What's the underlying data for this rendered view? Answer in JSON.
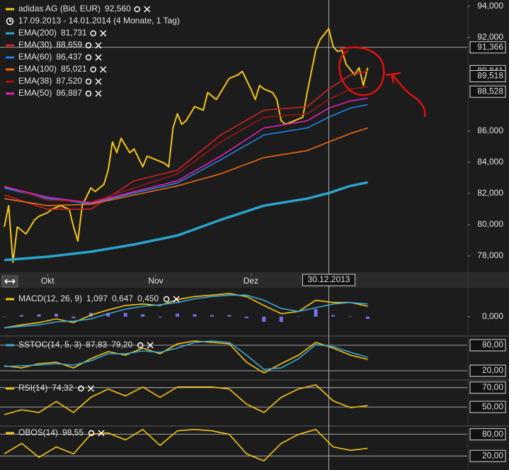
{
  "chart_data": [
    {
      "type": "line",
      "subtitle": "17.09.2013 - 14.01.2014 (4 Monate, 1 Tag)",
      "xlim": [
        -1,
        107
      ],
      "xticks": [
        {
          "value": 10,
          "label": "Okt"
        },
        {
          "value": 35,
          "label": "Nov"
        },
        {
          "value": 57,
          "label": "Dez"
        }
      ],
      "cursor": {
        "value": 75,
        "label": "30.12.2013"
      },
      "ylim": [
        77.5,
        94.4
      ],
      "yticks": [
        {
          "value": 78,
          "label": "78,000"
        },
        {
          "value": 80,
          "label": "80,000"
        },
        {
          "value": 82,
          "label": "82,000"
        },
        {
          "value": 84,
          "label": "84,000"
        },
        {
          "value": 86,
          "label": "86,000"
        },
        {
          "value": 92,
          "label": "92,000"
        },
        {
          "value": 94,
          "label": "94,000"
        }
      ],
      "grid": false,
      "price_lines": [
        {
          "value": 91.366,
          "label": "91,366"
        }
      ],
      "price_tags": [
        {
          "value": 89.841,
          "label": "89,841"
        },
        {
          "value": 89.518,
          "label": "89,518"
        },
        {
          "value": 88.528,
          "label": "88,528"
        }
      ],
      "x": [
        0,
        1,
        2,
        3,
        5,
        7,
        8,
        10,
        11,
        13,
        15,
        16,
        17,
        18,
        20,
        21,
        23,
        24,
        25,
        26,
        27,
        29,
        30,
        32,
        33,
        35,
        37,
        38,
        39,
        40,
        41,
        42,
        44,
        46,
        47,
        49,
        51,
        52,
        54,
        55,
        57,
        58,
        59,
        60,
        62,
        63,
        64,
        65,
        67,
        69,
        70,
        71,
        72,
        73,
        75,
        76,
        77,
        78,
        79,
        81,
        82,
        83,
        84
      ],
      "series": [
        {
          "name": "adidas AG (Bid, EUR)",
          "legend_value": "92,560",
          "color": "#f5c518",
          "values": [
            79.86,
            81.22,
            77.59,
            79.86,
            79.41,
            80.31,
            80.54,
            80.77,
            80.99,
            81.22,
            80.99,
            79.86,
            78.95,
            81.22,
            82.35,
            82.13,
            82.58,
            83.49,
            85.3,
            84.62,
            85.53,
            84.62,
            84.85,
            83.71,
            84.39,
            84.17,
            83.94,
            83.71,
            86.2,
            87.11,
            86.43,
            86.66,
            87.57,
            87.34,
            88.47,
            88.02,
            88.93,
            89.38,
            89.6,
            89.83,
            88.7,
            88.02,
            88.93,
            88.7,
            88.47,
            88.02,
            86.66,
            86.43,
            86.66,
            86.89,
            88.47,
            89.83,
            91.19,
            91.87,
            92.56,
            91.42,
            91.1,
            91.19,
            90.28,
            89.6,
            90.06,
            88.93,
            90.06
          ]
        },
        {
          "name": "EMA(200)",
          "legend_value": "81,731",
          "color": "#2aa3cc",
          "x": [
            0,
            10,
            20,
            30,
            40,
            50,
            60,
            70,
            75,
            80,
            84
          ],
          "values": [
            77.73,
            77.95,
            78.27,
            78.73,
            79.31,
            80.31,
            81.22,
            81.67,
            82.03,
            82.49,
            82.71
          ]
        },
        {
          "name": "EMA(30)",
          "legend_value": "88,659",
          "color": "#d42020",
          "x": [
            0,
            10,
            20,
            30,
            40,
            50,
            60,
            70,
            75,
            80,
            84
          ],
          "values": [
            81.9,
            80.99,
            80.99,
            82.81,
            83.49,
            85.75,
            87.34,
            87.56,
            88.7,
            89.6,
            89.83
          ]
        },
        {
          "name": "EMA(60)",
          "legend_value": "86,437",
          "color": "#1e84e6",
          "x": [
            0,
            10,
            20,
            30,
            40,
            50,
            60,
            70,
            75,
            80,
            84
          ],
          "values": [
            82.35,
            81.67,
            81.35,
            82.03,
            82.67,
            84.16,
            85.75,
            86.2,
            86.89,
            87.47,
            87.7
          ]
        },
        {
          "name": "EMA(100)",
          "legend_value": "85,021",
          "color": "#ec6a12",
          "x": [
            0,
            10,
            20,
            30,
            40,
            50,
            60,
            70,
            75,
            80,
            84
          ],
          "values": [
            81.67,
            81.22,
            81.31,
            81.9,
            82.49,
            83.26,
            84.3,
            84.75,
            85.3,
            85.84,
            86.2
          ]
        },
        {
          "name": "EMA(38)",
          "legend_value": "87,520",
          "color": "#9c1414",
          "x": [
            0,
            10,
            20,
            30,
            40,
            50,
            60,
            70,
            75,
            80,
            84
          ],
          "values": [
            82.49,
            81.58,
            81.45,
            82.35,
            83.26,
            85.3,
            86.89,
            87.11,
            88.02,
            88.7,
            88.83
          ]
        },
        {
          "name": "EMA(50)",
          "legend_value": "86,887",
          "color": "#e020b4",
          "x": [
            0,
            10,
            20,
            30,
            40,
            50,
            60,
            70,
            75,
            80,
            84
          ],
          "values": [
            82.44,
            81.76,
            81.4,
            82.12,
            82.81,
            84.39,
            86.2,
            86.66,
            87.47,
            87.93,
            88.11
          ]
        }
      ]
    },
    {
      "type": "line",
      "title": "MACD(12, 26, 9)",
      "xlim": [
        -1,
        107
      ],
      "ylim": [
        -1.6,
        2.9
      ],
      "yticks": [
        {
          "value": 0,
          "label": "0,000"
        }
      ],
      "grid": false,
      "x": [
        0,
        4,
        8,
        12,
        16,
        20,
        24,
        28,
        32,
        36,
        40,
        44,
        48,
        52,
        56,
        60,
        64,
        68,
        72,
        76,
        80,
        84
      ],
      "series": [
        {
          "type": "bar",
          "legend_value": "0,450",
          "color": "#7b6ff0",
          "values": [
            0.0,
            0.15,
            0.24,
            0.31,
            -0.16,
            0.4,
            0.4,
            0.39,
            0.24,
            -0.08,
            0.31,
            0.24,
            0.15,
            0.16,
            -0.15,
            -0.55,
            -0.56,
            0.0,
            0.79,
            0.16,
            0.0,
            -0.24
          ]
        },
        {
          "legend_value": "1,097",
          "color": "#f5c518",
          "values": [
            -1.18,
            -0.87,
            -0.63,
            -0.24,
            -0.63,
            0.16,
            0.71,
            1.18,
            1.34,
            1.18,
            1.81,
            2.13,
            2.28,
            2.44,
            2.13,
            1.18,
            0.31,
            0.55,
            1.73,
            1.5,
            1.5,
            1.1
          ]
        },
        {
          "legend_value": "0,647",
          "color": "#38a8d8",
          "values": [
            -1.18,
            -1.02,
            -0.87,
            -0.55,
            -0.47,
            -0.24,
            0.31,
            0.79,
            1.1,
            1.26,
            1.5,
            1.89,
            2.13,
            2.28,
            2.28,
            1.73,
            0.87,
            0.55,
            0.94,
            1.34,
            1.5,
            1.34
          ]
        }
      ]
    },
    {
      "type": "line",
      "title": "SSTOC(14, 5, 3)",
      "xlim": [
        -1,
        107
      ],
      "ylim": [
        5,
        95
      ],
      "yticks": [
        {
          "value": 20,
          "label": "20,00"
        },
        {
          "value": 80,
          "label": "80,00"
        }
      ],
      "grid": true,
      "x": [
        0,
        4,
        8,
        12,
        16,
        20,
        24,
        28,
        32,
        36,
        40,
        44,
        48,
        52,
        56,
        60,
        64,
        68,
        72,
        76,
        80,
        84
      ],
      "series": [
        {
          "legend_value": "87,83",
          "color": "#f5c518",
          "values": [
            31.7,
            26.7,
            36.7,
            40,
            26.7,
            48.3,
            65,
            56.7,
            73.3,
            60,
            83.3,
            90,
            86.7,
            83.3,
            40,
            15,
            36.7,
            56.7,
            86.7,
            73.3,
            56.7,
            46.7
          ]
        },
        {
          "legend_value": "79,20",
          "color": "#38a8d8",
          "values": [
            30,
            31.7,
            33.3,
            36.7,
            33.3,
            43.3,
            60,
            60,
            66.7,
            63.3,
            73.3,
            86.7,
            90,
            86.7,
            56.7,
            23.3,
            26.7,
            48.3,
            81.7,
            76.7,
            63.3,
            51.7
          ]
        }
      ]
    },
    {
      "type": "line",
      "title": "RSI(14)",
      "xlim": [
        -1,
        107
      ],
      "ylim": [
        31,
        75
      ],
      "yticks": [
        {
          "value": 50,
          "label": "50,00"
        },
        {
          "value": 70,
          "label": "70,00"
        }
      ],
      "grid": true,
      "x": [
        0,
        4,
        8,
        12,
        16,
        20,
        24,
        28,
        32,
        36,
        40,
        44,
        48,
        52,
        56,
        60,
        64,
        68,
        72,
        76,
        80,
        84
      ],
      "series": [
        {
          "legend_value": "74,32",
          "color": "#f5c518",
          "values": [
            42.1,
            47.1,
            44.3,
            55.7,
            44.3,
            60,
            68.6,
            61.4,
            70.7,
            60,
            70.7,
            70.7,
            70.7,
            68.6,
            52.9,
            44.3,
            60,
            68.6,
            72.9,
            56.4,
            49.3,
            51.4
          ]
        }
      ]
    },
    {
      "type": "line",
      "title": "OBOS(14)",
      "xlim": [
        -1,
        107
      ],
      "ylim": [
        -13,
        97
      ],
      "yticks": [
        {
          "value": 20,
          "label": "20,00"
        },
        {
          "value": 80,
          "label": "80,00"
        }
      ],
      "grid": true,
      "x": [
        0,
        4,
        8,
        12,
        16,
        20,
        24,
        28,
        32,
        36,
        40,
        44,
        48,
        52,
        56,
        60,
        64,
        68,
        72,
        76,
        80,
        84
      ],
      "series": [
        {
          "legend_value": "98,55",
          "color": "#f5c518",
          "values": [
            25.8,
            54.9,
            16.2,
            45.2,
            25.8,
            80,
            83.9,
            64.5,
            93.5,
            49.1,
            89.7,
            93.5,
            89.7,
            80,
            25.8,
            6.5,
            54.9,
            80,
            93.5,
            45.2,
            35.5,
            41.3
          ]
        }
      ]
    }
  ]
}
